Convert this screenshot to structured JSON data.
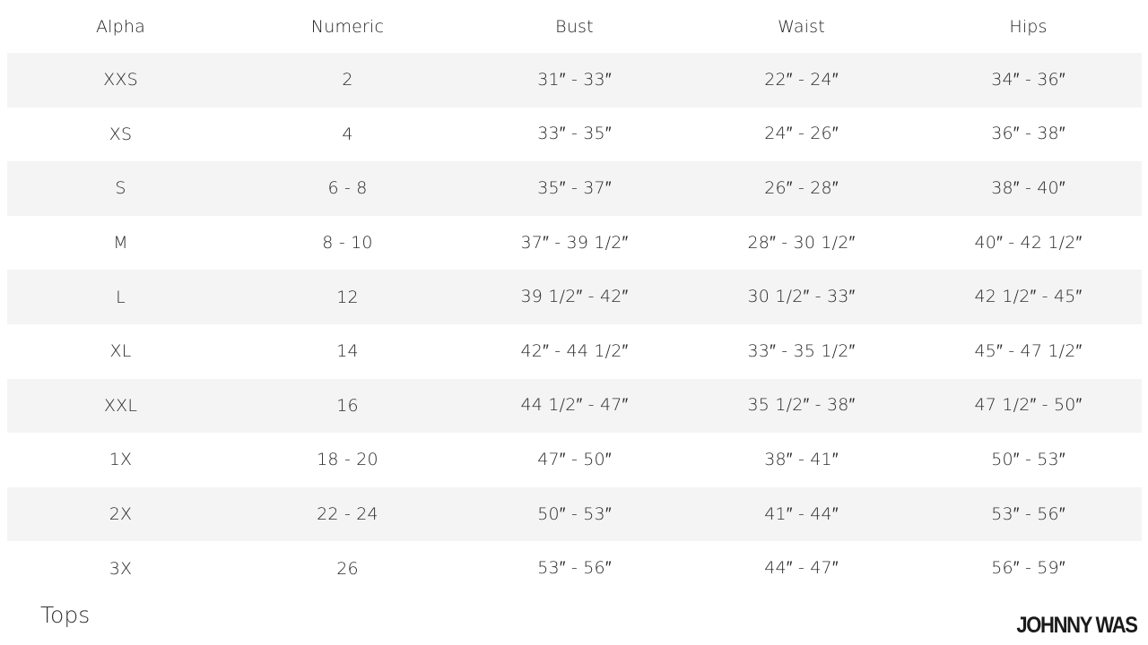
{
  "table": {
    "headers": [
      "Alpha",
      "Numeric",
      "Bust",
      "Waist",
      "Hips"
    ],
    "rows": [
      [
        "XXS",
        "2",
        "31″ - 33″",
        "22″ - 24″",
        "34″ - 36″"
      ],
      [
        "XS",
        "4",
        "33″ - 35″",
        "24″ - 26″",
        "36″ - 38″"
      ],
      [
        "S",
        "6 - 8",
        "35″ - 37″",
        "26″ - 28″",
        "38″ - 40″"
      ],
      [
        "M",
        "8 - 10",
        "37″ - 39 1/2″",
        "28″ - 30 1/2″",
        "40″ - 42 1/2″"
      ],
      [
        "L",
        "12",
        "39 1/2″ - 42″",
        "30 1/2″ - 33″",
        "42 1/2″ - 45″"
      ],
      [
        "XL",
        "14",
        "42″ - 44 1/2″",
        "33″ - 35 1/2″",
        "45″ - 47 1/2″"
      ],
      [
        "XXL",
        "16",
        "44 1/2″ - 47″",
        "35 1/2″ - 38″",
        "47 1/2″ - 50″"
      ],
      [
        "1X",
        "18 - 20",
        "47″ - 50″",
        "38″ - 41″",
        "50″ - 53″"
      ],
      [
        "2X",
        "22 - 24",
        "50″ - 53″",
        "41″ - 44″",
        "53″ - 56″"
      ],
      [
        "3X",
        "26",
        "53″ - 56″",
        "44″ - 47″",
        "56″ - 59″"
      ]
    ]
  },
  "footer": {
    "category": "Tops",
    "brand": "JOHNNY WAS"
  },
  "colors": {
    "shaded_row": "#f4f4f4",
    "text": "#2b2b2b"
  }
}
